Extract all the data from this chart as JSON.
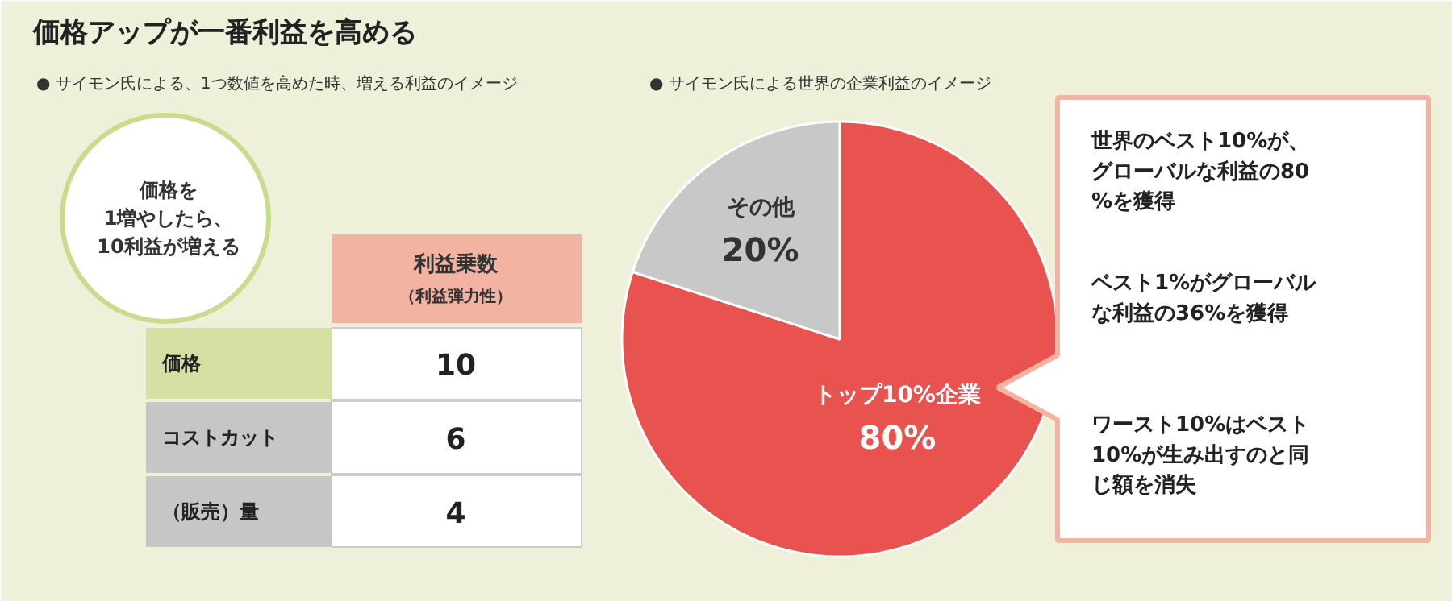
{
  "chart_data": [
    {
      "type": "other",
      "title": "価格アップが一番利益を高める",
      "subtitle": "● サイモン氏による、1つ数値を高めた時、増える利益のイメージ",
      "annotations": [
        "価格を\n1増やしたら、\n10利益が増える",
        "（利益弾力性）"
      ],
      "ylabel": "利益乗数",
      "data_labels": true,
      "categories": [
        "価格",
        "コストカット",
        "（販売）量"
      ],
      "values": [
        10,
        6,
        4
      ]
    },
    {
      "type": "pie",
      "subtitle": "● サイモン氏による世界の企業利益のイメージ",
      "categories": [
        "トップ10%企業",
        "その他"
      ],
      "values": [
        80,
        20
      ],
      "colors": [
        "#e8534f",
        "#c8c8c8"
      ],
      "value_labels": [
        "80%",
        "20%"
      ],
      "annotations": [
        "世界のベスト10%が、グローバルな利益の80%を獲得",
        "ベスト1%がグローバルな利益の36%を獲得",
        "ワースト10%はベスト10%が生み出すのと同じ額を消失"
      ]
    }
  ]
}
